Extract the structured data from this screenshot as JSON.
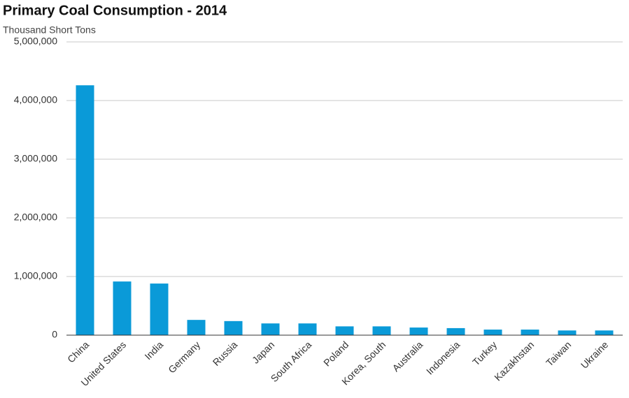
{
  "chart_data": {
    "type": "bar",
    "title": "Primary Coal Consumption - 2014",
    "subtitle": "Thousand Short Tons",
    "categories": [
      "China",
      "United States",
      "India",
      "Germany",
      "Russia",
      "Japan",
      "South Africa",
      "Poland",
      "Korea, South",
      "Australia",
      "Indonesia",
      "Turkey",
      "Kazakhstan",
      "Taiwan",
      "Ukraine"
    ],
    "values": [
      4260000,
      915000,
      880000,
      260000,
      240000,
      200000,
      200000,
      150000,
      150000,
      130000,
      120000,
      95000,
      95000,
      80000,
      80000
    ],
    "color": "#0a9ad8",
    "ylim": [
      0,
      5000000
    ],
    "yticks": [
      0,
      {
        "value": 1000000,
        "label": "1,000,000"
      },
      {
        "value": 2000000,
        "label": "2,000,000"
      },
      {
        "value": 3000000,
        "label": "3,000,000"
      },
      {
        "value": 4000000,
        "label": "4,000,000"
      },
      {
        "value": 5000000,
        "label": "5,000,000"
      }
    ],
    "grid": true
  }
}
